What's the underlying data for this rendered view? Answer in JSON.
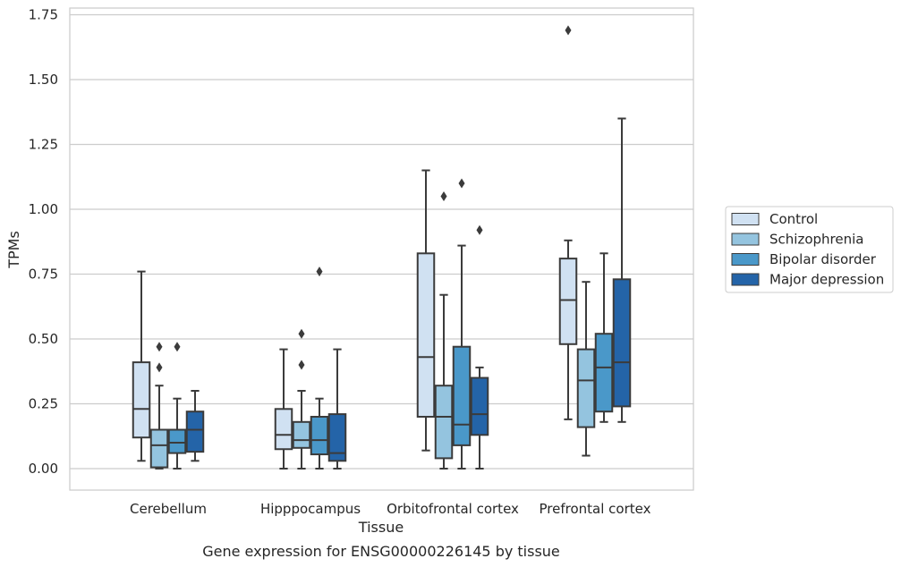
{
  "chart_data": {
    "type": "box",
    "title": "Gene expression for ENSG00000226145 by tissue",
    "xlabel": "Tissue",
    "ylabel": "TPMs",
    "ylim": [
      -0.08,
      1.77
    ],
    "yticks": [
      "0.00",
      "0.25",
      "0.50",
      "0.75",
      "1.00",
      "1.25",
      "1.50",
      "1.75"
    ],
    "categories": [
      "Cerebellum",
      "Hipppocampus",
      "Orbitofrontal cortex",
      "Prefrontal cortex"
    ],
    "grid": true,
    "legend_position": "right",
    "series": [
      {
        "name": "Control",
        "color": "#d0e1f2",
        "boxes": [
          {
            "whislo": 0.03,
            "q1": 0.12,
            "med": 0.23,
            "q3": 0.41,
            "whishi": 0.76,
            "fliers": []
          },
          {
            "whislo": 0.0,
            "q1": 0.075,
            "med": 0.13,
            "q3": 0.23,
            "whishi": 0.46,
            "fliers": []
          },
          {
            "whislo": 0.07,
            "q1": 0.2,
            "med": 0.43,
            "q3": 0.83,
            "whishi": 1.15,
            "fliers": []
          },
          {
            "whislo": 0.19,
            "q1": 0.48,
            "med": 0.65,
            "q3": 0.81,
            "whishi": 0.88,
            "fliers": [
              1.69
            ]
          }
        ]
      },
      {
        "name": "Schizophrenia",
        "color": "#94c4df",
        "boxes": [
          {
            "whislo": 0.0,
            "q1": 0.005,
            "med": 0.09,
            "q3": 0.15,
            "whishi": 0.32,
            "fliers": [
              0.39,
              0.47
            ]
          },
          {
            "whislo": 0.0,
            "q1": 0.08,
            "med": 0.11,
            "q3": 0.18,
            "whishi": 0.3,
            "fliers": [
              0.4,
              0.52
            ]
          },
          {
            "whislo": 0.0,
            "q1": 0.04,
            "med": 0.2,
            "q3": 0.32,
            "whishi": 0.67,
            "fliers": [
              1.05
            ]
          },
          {
            "whislo": 0.05,
            "q1": 0.16,
            "med": 0.34,
            "q3": 0.46,
            "whishi": 0.72,
            "fliers": []
          }
        ]
      },
      {
        "name": "Bipolar disorder",
        "color": "#4a98c9",
        "boxes": [
          {
            "whislo": 0.0,
            "q1": 0.06,
            "med": 0.1,
            "q3": 0.15,
            "whishi": 0.27,
            "fliers": [
              0.47
            ]
          },
          {
            "whislo": 0.0,
            "q1": 0.055,
            "med": 0.11,
            "q3": 0.2,
            "whishi": 0.27,
            "fliers": [
              0.76
            ]
          },
          {
            "whislo": 0.0,
            "q1": 0.09,
            "med": 0.17,
            "q3": 0.47,
            "whishi": 0.86,
            "fliers": [
              1.1
            ]
          },
          {
            "whislo": 0.18,
            "q1": 0.22,
            "med": 0.39,
            "q3": 0.52,
            "whishi": 0.83,
            "fliers": []
          }
        ]
      },
      {
        "name": "Major depression",
        "color": "#2464a8",
        "boxes": [
          {
            "whislo": 0.03,
            "q1": 0.065,
            "med": 0.15,
            "q3": 0.22,
            "whishi": 0.3,
            "fliers": []
          },
          {
            "whislo": 0.0,
            "q1": 0.03,
            "med": 0.06,
            "q3": 0.21,
            "whishi": 0.46,
            "fliers": []
          },
          {
            "whislo": 0.0,
            "q1": 0.13,
            "med": 0.21,
            "q3": 0.35,
            "whishi": 0.39,
            "fliers": [
              0.92
            ]
          },
          {
            "whislo": 0.18,
            "q1": 0.24,
            "med": 0.41,
            "q3": 0.73,
            "whishi": 1.35,
            "fliers": []
          }
        ]
      }
    ]
  }
}
